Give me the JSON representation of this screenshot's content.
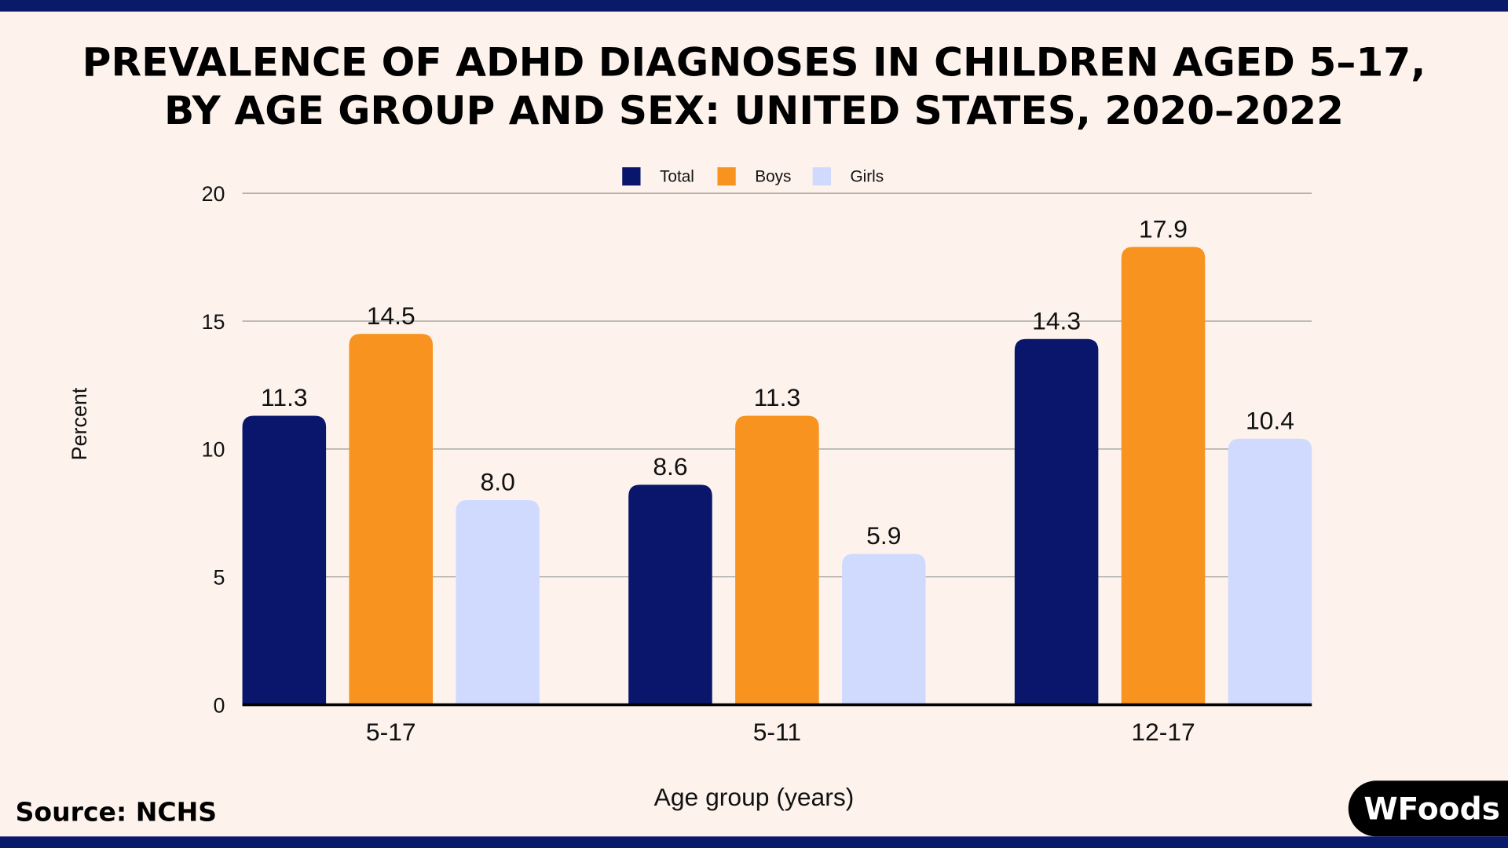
{
  "chart_data": {
    "type": "bar",
    "title": [
      "PREVALENCE OF ADHD DIAGNOSES IN CHILDREN AGED 5–17,",
      "BY AGE GROUP AND SEX: UNITED STATES, 2020–2022"
    ],
    "xlabel": "Age group (years)",
    "ylabel": "Percent",
    "ylim": [
      0,
      20
    ],
    "yticks": [
      0,
      5,
      10,
      15,
      20
    ],
    "grid": true,
    "legend_position": "top-center",
    "categories": [
      "5-17",
      "5-11",
      "12-17"
    ],
    "series": [
      {
        "name": "Total",
        "color": "#0a166b",
        "values": [
          11.3,
          8.6,
          14.3
        ]
      },
      {
        "name": "Boys",
        "color": "#f7931e",
        "values": [
          14.5,
          11.3,
          17.9
        ]
      },
      {
        "name": "Girls",
        "color": "#d0daff",
        "values": [
          8.0,
          5.9,
          10.4
        ]
      }
    ]
  },
  "footer": {
    "source": "Source: NCHS",
    "logo_text": "WFoods"
  },
  "colors": {
    "frame": "#0a1a6b",
    "background": "#fdf3ec"
  }
}
